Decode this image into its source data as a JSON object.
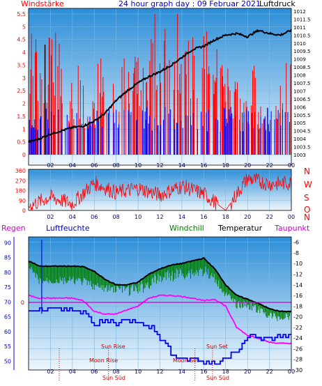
{
  "header": {
    "left_title": "Windstärke",
    "center_title": "24 hour graph day : 09 Februar 2021",
    "right_title": "Luftdruck"
  },
  "mid_labels": {
    "regen": "Regen",
    "luftfeuchte": "Luftfeuchte",
    "windchill": "Windchill",
    "temperatur": "Temperatur",
    "taupunkt": "Taupunkt"
  },
  "compass": [
    "N",
    "W",
    "S",
    "O",
    "N"
  ],
  "events": {
    "sun_rise": "Sun Rise",
    "moon_rise": "Moon Rise",
    "sun_set": "Sun Set",
    "moon_set": "Moon Set",
    "sun_south": "Sun Süd",
    "sun_south_2": "Sun Süd"
  },
  "colors": {
    "sky_top": "#2c8ed8",
    "sky_bottom": "#e8f4fb",
    "gust": "#ff0000",
    "wind_avg": "#0000ff",
    "pressure": "#000000",
    "direction": "#ff0000",
    "humidity": "#0000ff",
    "temperature": "#000000",
    "windchill": "#008000",
    "dewpoint": "#ff00ff",
    "rain_axis": "#0000ff",
    "event_marker": "#cc0000"
  },
  "chart_data": [
    {
      "type": "line",
      "title": "24 hour graph day : 09 Februar 2021",
      "x_ticks": [
        "02",
        "04",
        "06",
        "08",
        "10",
        "12",
        "14",
        "16",
        "18",
        "20",
        "22",
        "00"
      ],
      "x_range_hours": [
        0,
        24
      ],
      "left_axis": {
        "label": "Windstärke",
        "ticks": [
          "0",
          "0.5",
          "1",
          "1.5",
          "2",
          "2.5",
          "3",
          "3.5",
          "4",
          "4.5",
          "5",
          "5.5"
        ],
        "range": [
          0,
          5.5
        ]
      },
      "right_axis": {
        "label": "Luftdruck",
        "ticks": [
          "1003",
          "1003.5",
          "1004",
          "1004.5",
          "1005",
          "1005.5",
          "1006",
          "1006.5",
          "1007",
          "1007.5",
          "1008",
          "1008.5",
          "1009",
          "1009.5",
          "1010",
          "1010.5",
          "1011",
          "1011.5",
          "1012"
        ],
        "range": [
          1003,
          1012
        ]
      },
      "series": [
        {
          "name": "Luftdruck",
          "x": [
            0,
            1,
            2,
            3,
            4,
            5,
            6,
            7,
            8,
            9,
            10,
            11,
            12,
            13,
            14,
            15,
            16,
            17,
            18,
            19,
            20,
            21,
            22,
            23,
            24
          ],
          "values": [
            1003.8,
            1004.0,
            1004.3,
            1004.5,
            1004.7,
            1004.8,
            1005.1,
            1005.6,
            1006.4,
            1007.0,
            1007.5,
            1007.9,
            1008.2,
            1008.6,
            1009.1,
            1009.6,
            1009.8,
            1010.2,
            1010.5,
            1010.6,
            1010.4,
            1010.8,
            1010.6,
            1010.5,
            1010.8
          ]
        },
        {
          "name": "Gust",
          "x": [
            0,
            0.5,
            1.5,
            2.5,
            3.5,
            4.5,
            5.5,
            6.5,
            7.5,
            8.5,
            9.5,
            10.5,
            11.5,
            12.5,
            13.5,
            14.5,
            15.5,
            16.5,
            17.5,
            18.5,
            19.5,
            20.5,
            21.5,
            22.5,
            23.5
          ],
          "values": [
            3.7,
            5.5,
            3.7,
            5.5,
            1.8,
            3.7,
            1.8,
            3.7,
            3.7,
            3.7,
            3.7,
            3.7,
            5.5,
            5.5,
            5.5,
            5.5,
            5.5,
            5.5,
            3.7,
            3.7,
            1.8,
            3.7,
            1.8,
            1.8,
            3.7
          ]
        },
        {
          "name": "Wind",
          "x": [
            0,
            1.5,
            3.5,
            5.5,
            7.5,
            9.5,
            11.5,
            13.5,
            15.5,
            17.5,
            19.5,
            21.5,
            23.5
          ],
          "values": [
            1.8,
            1.8,
            1.8,
            1.8,
            1.8,
            1.8,
            1.8,
            1.8,
            1.8,
            1.8,
            1.8,
            1.8,
            1.8
          ]
        }
      ]
    },
    {
      "type": "line",
      "left_axis": {
        "ticks": [
          "0",
          "90",
          "180",
          "270",
          "360"
        ],
        "range": [
          0,
          360
        ]
      },
      "right_axis": {
        "ticks": [
          "N",
          "W",
          "S",
          "O",
          "N"
        ]
      },
      "x_range_hours": [
        0,
        24
      ],
      "series": [
        {
          "name": "Windrichtung",
          "x": [
            0,
            2,
            4,
            6,
            8,
            10,
            12,
            14,
            16,
            18,
            20,
            22,
            24
          ],
          "values": [
            40,
            120,
            60,
            250,
            160,
            200,
            140,
            220,
            150,
            0,
            290,
            240,
            250
          ]
        }
      ]
    },
    {
      "type": "line",
      "x_range_hours": [
        0,
        24
      ],
      "left_axis": {
        "label": "Luftfeuchte",
        "ticks": [
          "50",
          "55",
          "60",
          "65",
          "70",
          "75",
          "80",
          "85",
          "90"
        ],
        "range": [
          47,
          92
        ]
      },
      "right_axis": {
        "label": "Temperatur",
        "ticks": [
          "-6",
          "-8",
          "-10",
          "-12",
          "-14",
          "-16",
          "-18",
          "-20",
          "-22",
          "-24",
          "-26",
          "-28",
          "-30"
        ],
        "range": [
          -30,
          -5
        ]
      },
      "rain_axis": {
        "label": "Regen",
        "ticks": [
          "0"
        ]
      },
      "series": [
        {
          "name": "Temperatur",
          "x": [
            0,
            1,
            2,
            3,
            4,
            5,
            6,
            7,
            8,
            9,
            10,
            11,
            12,
            13,
            14,
            15,
            16,
            17,
            18,
            19,
            20,
            21,
            22,
            23,
            24
          ],
          "values": [
            -9.5,
            -10.5,
            -10.5,
            -10.5,
            -10.5,
            -10.6,
            -11.5,
            -13,
            -14,
            -14,
            -13.5,
            -12,
            -11,
            -10.3,
            -10,
            -9.5,
            -9,
            -11,
            -14,
            -16,
            -16.7,
            -17.5,
            -18.5,
            -19,
            -19
          ]
        },
        {
          "name": "Windchill",
          "x": [
            0,
            1,
            2,
            3,
            4,
            5,
            6,
            7,
            8,
            9,
            10,
            11,
            12,
            13,
            14,
            15,
            16,
            17,
            18,
            19,
            20,
            21,
            22,
            23,
            24
          ],
          "values": [
            -10,
            -12.5,
            -12.5,
            -12.5,
            -12.5,
            -12.6,
            -13.5,
            -14,
            -14,
            -14,
            -13.5,
            -12.5,
            -11.5,
            -11,
            -10.5,
            -10.5,
            -10,
            -12,
            -15,
            -17,
            -17,
            -18,
            -19,
            -19.5,
            -19
          ]
        },
        {
          "name": "Taupunkt",
          "x": [
            0,
            1,
            2,
            3,
            4,
            5,
            6,
            7,
            8,
            9,
            10,
            11,
            12,
            13,
            14,
            15,
            16,
            17,
            18,
            19,
            20,
            21,
            22,
            23,
            24
          ],
          "values": [
            -16,
            -16.5,
            -16.5,
            -16.5,
            -16.5,
            -17,
            -19,
            -19.5,
            -19.5,
            -18.7,
            -18,
            -16.5,
            -16,
            -16,
            -16.2,
            -16.5,
            -17,
            -16.7,
            -18,
            -22,
            -23.5,
            -24,
            -24.8,
            -25,
            -25
          ]
        },
        {
          "name": "Luftfeuchte",
          "x": [
            0,
            1,
            2,
            3,
            4,
            5,
            6,
            7,
            8,
            9,
            10,
            11,
            12,
            13,
            14,
            15,
            16,
            17,
            18,
            19,
            20,
            21,
            22,
            23,
            24
          ],
          "values": [
            66,
            67,
            68,
            67.5,
            67.5,
            67,
            62,
            64,
            63,
            64,
            64,
            62,
            58,
            53,
            51,
            51,
            50,
            49,
            51,
            54,
            58,
            58,
            57.5,
            58.5,
            58.5
          ]
        }
      ]
    }
  ]
}
